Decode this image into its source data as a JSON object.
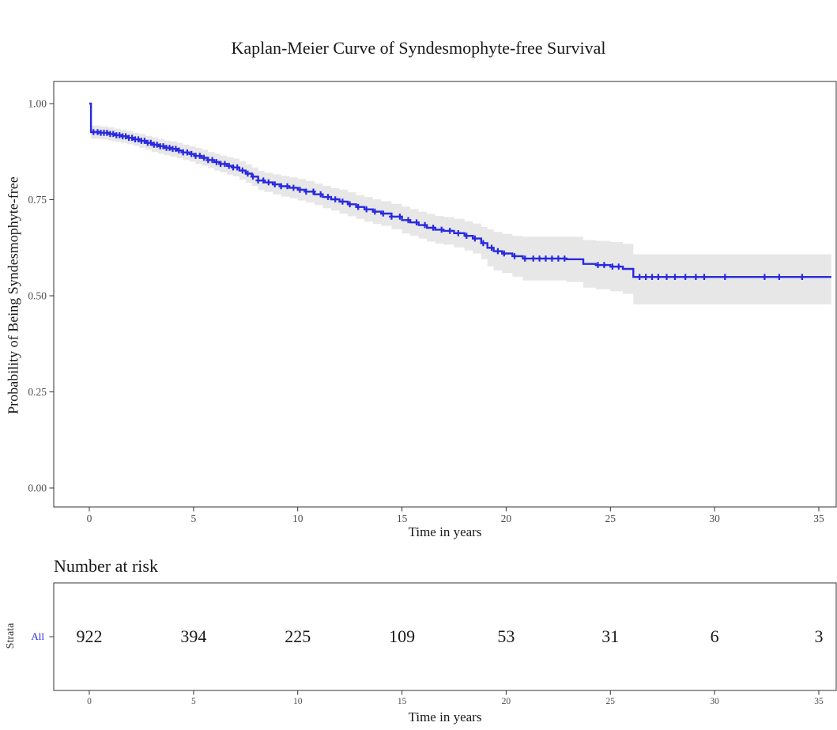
{
  "title": "Kaplan-Meier Curve of Syndesmophyte-free Survival",
  "colors": {
    "curve": "#2929E0",
    "ci_band": "#e7e7e7",
    "panel_border": "#333333",
    "tick_text": "#4d4d4d",
    "text": "#1a1a1a"
  },
  "chart_data": {
    "type": "line",
    "subtype": "kaplan-meier-step-with-ci",
    "title": "Kaplan-Meier Curve of Syndesmophyte-free Survival",
    "xlabel": "Time in years",
    "ylabel": "Probability of Being Syndesmophyte-free",
    "xlim": [
      -1.7,
      35.8
    ],
    "ylim": [
      -0.05,
      1.06
    ],
    "xticks": [
      0,
      5,
      10,
      15,
      20,
      25,
      30,
      35
    ],
    "yticks": [
      "0.00",
      "0.25",
      "0.50",
      "0.75",
      "1.00"
    ],
    "grid": false,
    "legend": "none",
    "series": [
      {
        "name": "All",
        "color": "#2929E0",
        "steps_format": [
          "time_years",
          "survival",
          "ci_lower",
          "ci_upper"
        ],
        "steps": [
          [
            0,
            1.0,
            1.0,
            1.0
          ],
          [
            0.08,
            0.926,
            0.909,
            0.943
          ],
          [
            0.5,
            0.924,
            0.907,
            0.941
          ],
          [
            0.9,
            0.921,
            0.904,
            0.938
          ],
          [
            1.2,
            0.918,
            0.901,
            0.935
          ],
          [
            1.5,
            0.915,
            0.898,
            0.932
          ],
          [
            1.8,
            0.911,
            0.894,
            0.928
          ],
          [
            2.1,
            0.907,
            0.89,
            0.924
          ],
          [
            2.4,
            0.903,
            0.885,
            0.921
          ],
          [
            2.7,
            0.898,
            0.88,
            0.916
          ],
          [
            3.0,
            0.893,
            0.874,
            0.912
          ],
          [
            3.3,
            0.889,
            0.87,
            0.908
          ],
          [
            3.6,
            0.885,
            0.866,
            0.904
          ],
          [
            3.9,
            0.882,
            0.862,
            0.902
          ],
          [
            4.2,
            0.878,
            0.858,
            0.898
          ],
          [
            4.5,
            0.873,
            0.853,
            0.893
          ],
          [
            4.8,
            0.869,
            0.849,
            0.889
          ],
          [
            5.1,
            0.864,
            0.843,
            0.885
          ],
          [
            5.4,
            0.859,
            0.838,
            0.88
          ],
          [
            5.7,
            0.853,
            0.832,
            0.874
          ],
          [
            6.0,
            0.848,
            0.826,
            0.87
          ],
          [
            6.3,
            0.843,
            0.821,
            0.865
          ],
          [
            6.6,
            0.838,
            0.815,
            0.861
          ],
          [
            6.9,
            0.834,
            0.811,
            0.857
          ],
          [
            7.2,
            0.826,
            0.802,
            0.85
          ],
          [
            7.5,
            0.818,
            0.794,
            0.842
          ],
          [
            7.8,
            0.81,
            0.786,
            0.834
          ],
          [
            8.1,
            0.8,
            0.775,
            0.825
          ],
          [
            8.4,
            0.795,
            0.77,
            0.82
          ],
          [
            8.8,
            0.79,
            0.764,
            0.816
          ],
          [
            9.2,
            0.785,
            0.758,
            0.812
          ],
          [
            9.6,
            0.781,
            0.754,
            0.808
          ],
          [
            10.0,
            0.776,
            0.748,
            0.804
          ],
          [
            10.4,
            0.771,
            0.743,
            0.799
          ],
          [
            10.8,
            0.764,
            0.736,
            0.792
          ],
          [
            11.2,
            0.757,
            0.728,
            0.786
          ],
          [
            11.6,
            0.751,
            0.722,
            0.78
          ],
          [
            12.0,
            0.745,
            0.714,
            0.776
          ],
          [
            12.4,
            0.738,
            0.707,
            0.769
          ],
          [
            12.8,
            0.731,
            0.7,
            0.762
          ],
          [
            13.2,
            0.725,
            0.693,
            0.757
          ],
          [
            13.6,
            0.719,
            0.687,
            0.751
          ],
          [
            14.0,
            0.714,
            0.682,
            0.746
          ],
          [
            14.5,
            0.706,
            0.673,
            0.739
          ],
          [
            15.0,
            0.697,
            0.662,
            0.732
          ],
          [
            15.4,
            0.691,
            0.656,
            0.726
          ],
          [
            15.8,
            0.684,
            0.649,
            0.719
          ],
          [
            16.2,
            0.677,
            0.641,
            0.713
          ],
          [
            16.6,
            0.672,
            0.636,
            0.708
          ],
          [
            17.0,
            0.669,
            0.633,
            0.705
          ],
          [
            17.5,
            0.663,
            0.626,
            0.7
          ],
          [
            18.0,
            0.656,
            0.618,
            0.694
          ],
          [
            18.4,
            0.649,
            0.61,
            0.688
          ],
          [
            18.8,
            0.637,
            0.595,
            0.679
          ],
          [
            19.1,
            0.625,
            0.577,
            0.673
          ],
          [
            19.4,
            0.616,
            0.566,
            0.666
          ],
          [
            19.8,
            0.61,
            0.559,
            0.661
          ],
          [
            20.3,
            0.603,
            0.55,
            0.656
          ],
          [
            20.8,
            0.597,
            0.54,
            0.654
          ],
          [
            22.9,
            0.595,
            0.536,
            0.654
          ],
          [
            23.7,
            0.583,
            0.521,
            0.645
          ],
          [
            24.3,
            0.58,
            0.517,
            0.643
          ],
          [
            25.0,
            0.576,
            0.512,
            0.64
          ],
          [
            25.6,
            0.57,
            0.505,
            0.635
          ],
          [
            26.1,
            0.549,
            0.478,
            0.608
          ],
          [
            35.6,
            0.549,
            0.478,
            0.608
          ]
        ],
        "censor_times": [
          0.2,
          0.4,
          0.55,
          0.7,
          0.85,
          1.0,
          1.15,
          1.3,
          1.45,
          1.6,
          1.75,
          1.9,
          2.05,
          2.2,
          2.35,
          2.5,
          2.65,
          2.8,
          2.95,
          3.1,
          3.25,
          3.4,
          3.55,
          3.7,
          3.85,
          4.0,
          4.15,
          4.3,
          4.5,
          4.7,
          4.9,
          5.1,
          5.3,
          5.5,
          5.7,
          5.9,
          6.1,
          6.3,
          6.5,
          6.7,
          6.9,
          7.1,
          7.35,
          7.6,
          7.85,
          8.1,
          8.35,
          8.6,
          8.9,
          9.2,
          9.5,
          9.8,
          10.1,
          10.4,
          10.75,
          11.1,
          11.45,
          11.8,
          12.15,
          12.5,
          12.9,
          13.3,
          13.7,
          14.1,
          14.5,
          14.9,
          15.3,
          15.7,
          16.1,
          16.5,
          16.9,
          17.3,
          17.7,
          18.1,
          18.5,
          18.9,
          19.3,
          19.6,
          19.9,
          20.4,
          20.9,
          21.3,
          21.6,
          21.9,
          22.2,
          22.5,
          22.8,
          24.4,
          24.7,
          25.1,
          25.4,
          26.4,
          26.7,
          27.0,
          27.3,
          27.7,
          28.1,
          28.6,
          29.1,
          29.5,
          30.5,
          32.4,
          33.1,
          34.2
        ]
      }
    ]
  },
  "risk_table": {
    "heading": "Number at risk",
    "strata_axis_label": "Strata",
    "xlabel": "Time in years",
    "times": [
      0,
      5,
      10,
      15,
      20,
      25,
      30,
      35
    ],
    "rows": [
      {
        "label": "All",
        "color": "#2929E0",
        "counts": [
          922,
          394,
          225,
          109,
          53,
          31,
          6,
          3
        ]
      }
    ]
  }
}
